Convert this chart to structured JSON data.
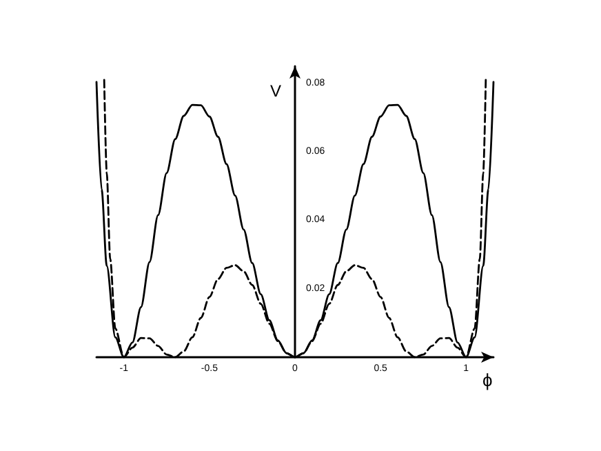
{
  "chart_data": {
    "type": "line",
    "xlabel": "ϕ",
    "ylabel": "V",
    "xlim": [
      -1.16,
      1.16
    ],
    "ylim": [
      0,
      0.085
    ],
    "xticks": [
      -1,
      -0.5,
      0,
      0.5,
      1
    ],
    "yticks": [
      0.02,
      0.04,
      0.06,
      0.08
    ],
    "grid": false,
    "marker": "none",
    "series": [
      {
        "color": "#000000",
        "line_style": "solid",
        "x": [
          -1.16,
          -1.13,
          -1.1,
          -1.05,
          -1,
          -0.95,
          -0.9,
          -0.85,
          -0.8,
          -0.75,
          -0.7,
          -0.65,
          -0.6,
          -0.55,
          -0.5,
          -0.45,
          -0.4,
          -0.35,
          -0.3,
          -0.25,
          -0.2,
          -0.15,
          -0.1,
          -0.05,
          0,
          0.05,
          0.1,
          0.15,
          0.2,
          0.25,
          0.3,
          0.35,
          0.4,
          0.45,
          0.5,
          0.55,
          0.6,
          0.65,
          0.7,
          0.75,
          0.8,
          0.85,
          0.9,
          0.95,
          1,
          1.05,
          1.1,
          1.13,
          1.16
        ],
        "values": [
          0.0804,
          0.049,
          0.0267,
          0.0058,
          0,
          0.0043,
          0.0146,
          0.0278,
          0.0415,
          0.0538,
          0.0637,
          0.0705,
          0.0737,
          0.0736,
          0.0703,
          0.0644,
          0.0564,
          0.0472,
          0.0373,
          0.0275,
          0.0184,
          0.0108,
          0.0049,
          0.0012,
          0,
          0.0012,
          0.0049,
          0.0108,
          0.0184,
          0.0275,
          0.0373,
          0.0472,
          0.0564,
          0.0644,
          0.0703,
          0.0736,
          0.0737,
          0.0705,
          0.0637,
          0.0538,
          0.0415,
          0.0278,
          0.0146,
          0.0043,
          0,
          0.0058,
          0.0267,
          0.049,
          0.0804
        ]
      },
      {
        "color": "#000000",
        "line_style": "dashed",
        "x": [
          -1.115,
          -1.1,
          -1.08,
          -1.05,
          -1,
          -0.95,
          -0.9,
          -0.85,
          -0.8,
          -0.75,
          -0.7,
          -0.65,
          -0.6,
          -0.55,
          -0.5,
          -0.45,
          -0.4,
          -0.35,
          -0.3,
          -0.25,
          -0.2,
          -0.15,
          -0.1,
          -0.05,
          0,
          0.05,
          0.1,
          0.15,
          0.2,
          0.25,
          0.3,
          0.35,
          0.4,
          0.45,
          0.5,
          0.55,
          0.6,
          0.65,
          0.7,
          0.75,
          0.8,
          0.85,
          0.9,
          0.95,
          1,
          1.05,
          1.08,
          1.1,
          1.115
        ],
        "values": [
          0.081,
          0.0538,
          0.0287,
          0.0084,
          0,
          0.0028,
          0.0056,
          0.0055,
          0.0033,
          0.0008,
          0,
          0.0017,
          0.0058,
          0.0115,
          0.0176,
          0.0228,
          0.0261,
          0.0269,
          0.0251,
          0.0211,
          0.0156,
          0.0098,
          0.0047,
          0.0012,
          0,
          0.0012,
          0.0047,
          0.0098,
          0.0156,
          0.0211,
          0.0251,
          0.0269,
          0.0261,
          0.0228,
          0.0176,
          0.0115,
          0.0058,
          0.0017,
          0,
          0.0008,
          0.0033,
          0.0055,
          0.0056,
          0.0028,
          0,
          0.0084,
          0.0287,
          0.0538,
          0.081
        ]
      }
    ]
  }
}
